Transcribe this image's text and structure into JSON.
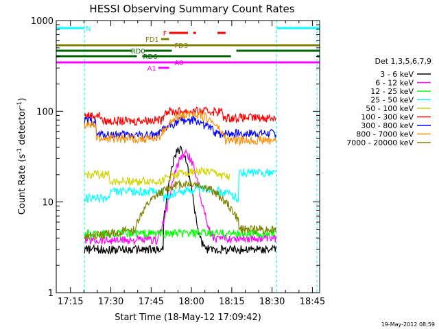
{
  "chart_data": {
    "type": "line",
    "title": "HESSI Observing Summary Count Rates",
    "xlabel": "Start Time (18-May-12 17:09:42)",
    "ylabel_main": "Count Rate (s",
    "ylabel_sup1": "-1",
    "ylabel_mid": " detector",
    "ylabel_sup2": "-1",
    "ylabel_end": ")",
    "yscale": "log",
    "ylim": [
      1,
      1000
    ],
    "xlim_minutes": [
      0,
      98
    ],
    "x_ticks": [
      {
        "label": "17:15",
        "value": 5.3
      },
      {
        "label": "17:30",
        "value": 20.3
      },
      {
        "label": "17:45",
        "value": 35.3
      },
      {
        "label": "18:00",
        "value": 50.3
      },
      {
        "label": "18:15",
        "value": 65.3
      },
      {
        "label": "18:30",
        "value": 80.3
      },
      {
        "label": "18:45",
        "value": 95.3
      }
    ],
    "y_ticks": [
      {
        "label": "1",
        "value": 1
      },
      {
        "label": "10",
        "value": 10
      },
      {
        "label": "100",
        "value": 100
      },
      {
        "label": "1000",
        "value": 1000
      }
    ],
    "legend": {
      "position": "right",
      "title": "Det 1,3,5,6,7,9",
      "entries": [
        {
          "label": "3 - 6 keV",
          "color": "#000000"
        },
        {
          "label": "6 - 12 keV",
          "color": "#ff00ff"
        },
        {
          "label": "12 - 25 keV",
          "color": "#00ff00"
        },
        {
          "label": "25 - 50 keV",
          "color": "#00ffff"
        },
        {
          "label": "50 - 100 keV",
          "color": "#d4d400"
        },
        {
          "label": "100 - 300 keV",
          "color": "#ff0000"
        },
        {
          "label": "300 - 800 keV",
          "color": "#0000ff"
        },
        {
          "label": "800 - 7000 keV",
          "color": "#ff8c00"
        },
        {
          "label": "7000 - 20000 keV",
          "color": "#808000"
        }
      ]
    },
    "flags": [
      {
        "label": "N",
        "color": "#00ffff",
        "segments": [
          [
            0,
            10.5
          ],
          [
            82,
            98
          ]
        ]
      },
      {
        "label": "F",
        "color": "#ff0000",
        "segments": [
          [
            42,
            49
          ],
          [
            51,
            52
          ],
          [
            60,
            63
          ]
        ]
      },
      {
        "label": "FD1",
        "color": "#808000",
        "segments": [
          [
            39,
            42
          ]
        ]
      },
      {
        "label": "FD3",
        "color": "#808000",
        "segments": [
          [
            0,
            98
          ]
        ]
      },
      {
        "label": "RD0",
        "color": "#006400",
        "segments": [
          [
            0,
            28
          ],
          [
            33,
            43
          ],
          [
            67,
            98
          ]
        ]
      },
      {
        "label": "RD6",
        "color": "#006400",
        "segments": [
          [
            0,
            30
          ],
          [
            32,
            65
          ],
          [
            97,
            98
          ]
        ]
      },
      {
        "label": "A0",
        "color": "#ff00ff",
        "segments": [
          [
            0,
            98
          ]
        ]
      },
      {
        "label": "A1",
        "color": "#ff00ff",
        "segments": [
          [
            38,
            42
          ]
        ]
      }
    ],
    "saa_night_markers_minutes": [
      0,
      10.5,
      82,
      97
    ],
    "footer": "19-May-2012 08:59"
  }
}
